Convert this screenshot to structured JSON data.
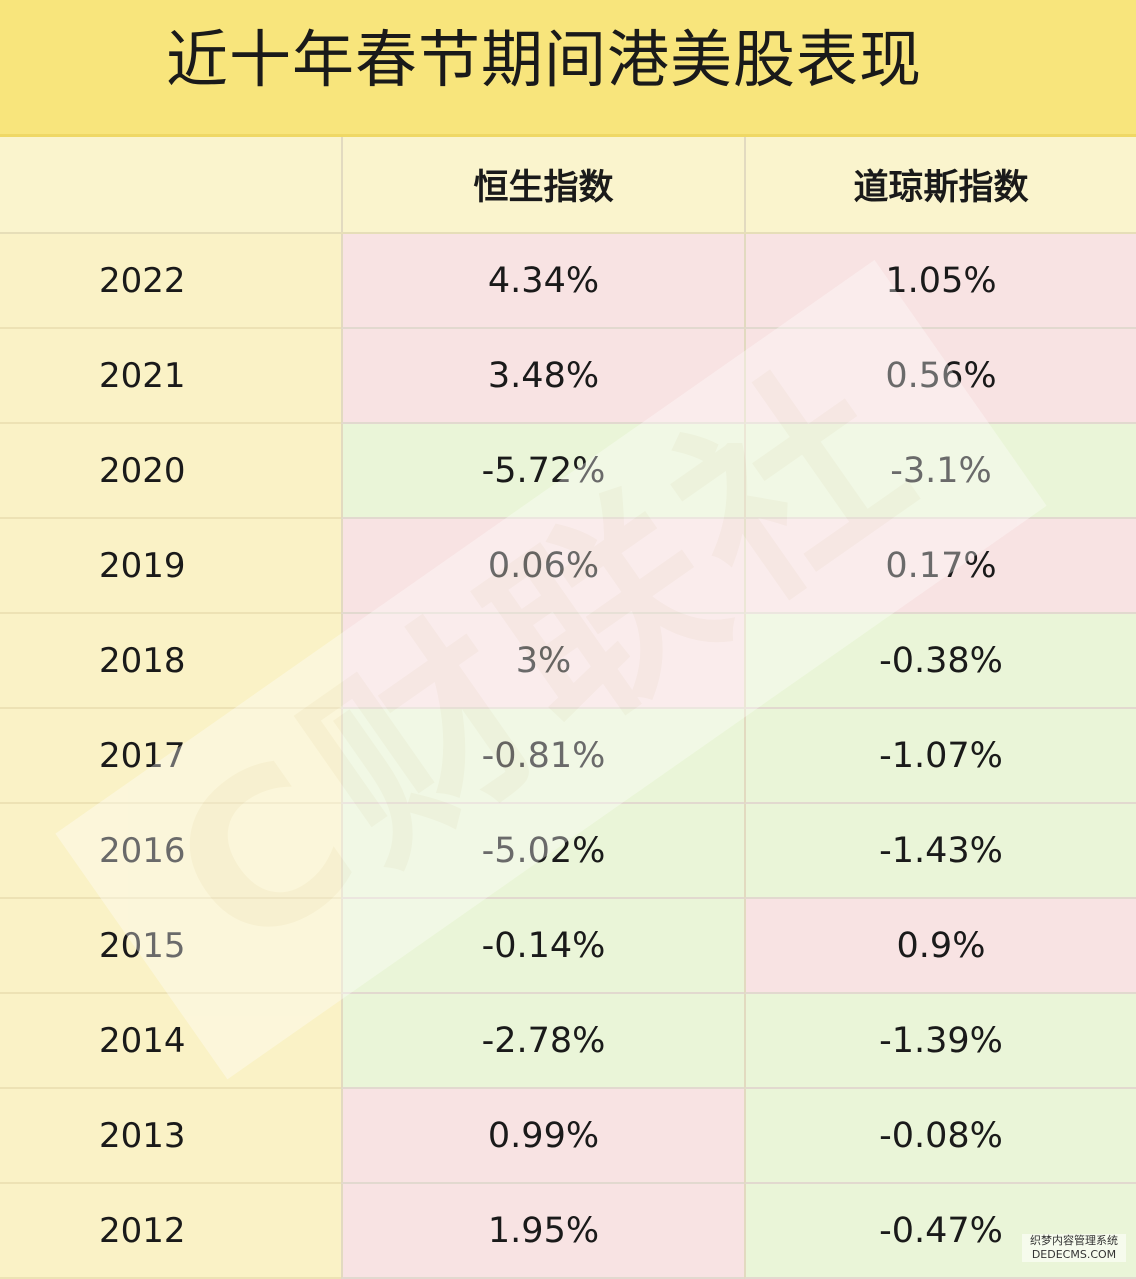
{
  "title": "近十年春节期间港美股表现",
  "table": {
    "headers": [
      "",
      "恒生指数",
      "道琼斯指数"
    ],
    "rows": [
      {
        "year": "2022",
        "hsi": "4.34%",
        "dji": "1.05%"
      },
      {
        "year": "2021",
        "hsi": "3.48%",
        "dji": "0.56%"
      },
      {
        "year": "2020",
        "hsi": "-5.72%",
        "dji": "-3.1%"
      },
      {
        "year": "2019",
        "hsi": "0.06%",
        "dji": "0.17%"
      },
      {
        "year": "2018",
        "hsi": "3%",
        "dji": "-0.38%"
      },
      {
        "year": "2017",
        "hsi": "-0.81%",
        "dji": "-1.07%"
      },
      {
        "year": "2016",
        "hsi": "-5.02%",
        "dji": "-1.43%"
      },
      {
        "year": "2015",
        "hsi": "-0.14%",
        "dji": "0.9%"
      },
      {
        "year": "2014",
        "hsi": "-2.78%",
        "dji": "-1.39%"
      },
      {
        "year": "2013",
        "hsi": "0.99%",
        "dji": "-0.08%"
      },
      {
        "year": "2012",
        "hsi": "1.95%",
        "dji": "-0.47%"
      }
    ]
  },
  "colors": {
    "title_background": "#f8e57c",
    "positive_cell": "#f8e3e3",
    "negative_cell": "#eaf5d8",
    "year_column": "#faf2c6"
  },
  "watermark": {
    "site_line1": "织梦内容管理系统",
    "site_line2": "DEDECMS.COM"
  },
  "chart_data": {
    "type": "table",
    "title": "近十年春节期间港美股表现",
    "columns": [
      "",
      "恒生指数",
      "道琼斯指数"
    ],
    "categories": [
      "2022",
      "2021",
      "2020",
      "2019",
      "2018",
      "2017",
      "2016",
      "2015",
      "2014",
      "2013",
      "2012"
    ],
    "series": [
      {
        "name": "恒生指数",
        "values": [
          4.34,
          3.48,
          -5.72,
          0.06,
          3,
          -0.81,
          -5.02,
          -0.14,
          -2.78,
          0.99,
          1.95
        ]
      },
      {
        "name": "道琼斯指数",
        "values": [
          1.05,
          0.56,
          -3.1,
          0.17,
          -0.38,
          -1.07,
          -1.43,
          0.9,
          -1.39,
          -0.08,
          -0.47
        ]
      }
    ],
    "unit": "%"
  }
}
